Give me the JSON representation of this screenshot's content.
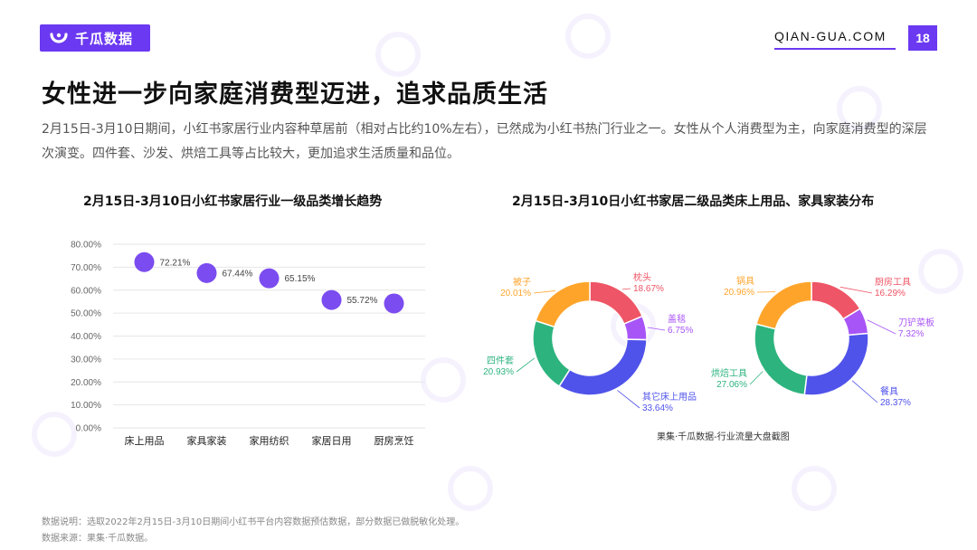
{
  "brand": {
    "logo_text": "千瓜数据",
    "site": "QIAN-GUA.COM",
    "page_number": "18",
    "color": "#6b39f1"
  },
  "title": "女性进一步向家庭消费型迈进，追求品质生活",
  "description": "2月15日-3月10日期间，小红书家居行业内容种草居前（相对占比约10%左右），已然成为小红书热门行业之一。女性从个人消费型为主，向家庭消费型的深层次演变。四件套、沙发、烘焙工具等占比较大，更加追求生活质量和品位。",
  "footnotes": {
    "note": "数据说明：选取2022年2月15日-3月10日期间小红书平台内容数据预估数据，部分数据已做脱敏化处理。",
    "source": "数据来源：果集·千瓜数据。"
  },
  "source_note": "果集·千瓜数据-行业流量大盘截图",
  "chart_data": [
    {
      "type": "scatter",
      "title": "2月15日-3月10日小红书家居行业一级品类增长趋势",
      "categories": [
        "床上用品",
        "家具家装",
        "家用纺织",
        "家居日用",
        "厨房烹饪"
      ],
      "values": [
        72.21,
        67.44,
        65.15,
        55.72,
        54.2
      ],
      "data_labels": [
        "72.21%",
        "67.44%",
        "65.15%",
        "55.72%",
        ""
      ],
      "y_ticks": [
        "0.00%",
        "10.00%",
        "20.00%",
        "30.00%",
        "40.00%",
        "50.00%",
        "60.00%",
        "70.00%",
        "80.00%"
      ],
      "ylim": [
        0,
        80
      ],
      "grid": true,
      "color": "#7b4cf0"
    },
    {
      "type": "pie",
      "title": "2月15日-3月10日小红书家居二级品类床上用品、家具家装分布",
      "slices": [
        {
          "label": "枕头",
          "value": 18.67,
          "value_label": "18.67%",
          "color": "#ee5566"
        },
        {
          "label": "盖毯",
          "value": 6.75,
          "value_label": "6.75%",
          "color": "#a855f7"
        },
        {
          "label": "其它床上用品",
          "value": 33.64,
          "value_label": "33.64%",
          "color": "#5053ea"
        },
        {
          "label": "四件套",
          "value": 20.93,
          "value_label": "20.93%",
          "color": "#2db37e"
        },
        {
          "label": "被子",
          "value": 20.01,
          "value_label": "20.01%",
          "color": "#ffa42b"
        }
      ]
    },
    {
      "type": "pie",
      "title": "",
      "slices": [
        {
          "label": "厨房工具",
          "value": 16.29,
          "value_label": "16.29%",
          "color": "#ee5566"
        },
        {
          "label": "刀铲菜板",
          "value": 7.32,
          "value_label": "7.32%",
          "color": "#a855f7"
        },
        {
          "label": "餐具",
          "value": 28.37,
          "value_label": "28.37%",
          "color": "#5053ea"
        },
        {
          "label": "烘焙工具",
          "value": 27.06,
          "value_label": "27.06%",
          "color": "#2db37e"
        },
        {
          "label": "锅具",
          "value": 20.96,
          "value_label": "20.96%",
          "color": "#ffa42b"
        }
      ]
    }
  ]
}
